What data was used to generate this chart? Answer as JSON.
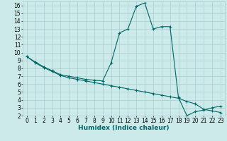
{
  "xlabel": "Humidex (Indice chaleur)",
  "ylabel": "",
  "background_color": "#cceaea",
  "grid_color": "#aacccc",
  "line_color": "#006666",
  "xlim": [
    -0.5,
    23.5
  ],
  "ylim": [
    2,
    16.5
  ],
  "xticks": [
    0,
    1,
    2,
    3,
    4,
    5,
    6,
    7,
    8,
    9,
    10,
    11,
    12,
    13,
    14,
    15,
    16,
    17,
    18,
    19,
    20,
    21,
    22,
    23
  ],
  "yticks": [
    2,
    3,
    4,
    5,
    6,
    7,
    8,
    9,
    10,
    11,
    12,
    13,
    14,
    15,
    16
  ],
  "series1_x": [
    0,
    1,
    2,
    3,
    4,
    5,
    6,
    7,
    8,
    9,
    10,
    11,
    12,
    13,
    14,
    15,
    16,
    17,
    18,
    19,
    20,
    21,
    22,
    23
  ],
  "series1_y": [
    9.5,
    8.8,
    8.2,
    7.7,
    7.2,
    7.0,
    6.8,
    6.6,
    6.5,
    6.4,
    8.7,
    12.5,
    13.0,
    15.9,
    16.3,
    13.0,
    13.3,
    13.3,
    4.3,
    2.0,
    2.5,
    2.7,
    3.0,
    3.2
  ],
  "series2_x": [
    0,
    1,
    2,
    3,
    4,
    5,
    6,
    7,
    8,
    9,
    10,
    11,
    12,
    13,
    14,
    15,
    16,
    17,
    18,
    19,
    20,
    21,
    22,
    23
  ],
  "series2_y": [
    9.5,
    8.7,
    8.1,
    7.6,
    7.1,
    6.8,
    6.6,
    6.4,
    6.2,
    6.0,
    5.8,
    5.6,
    5.4,
    5.2,
    5.0,
    4.8,
    4.6,
    4.4,
    4.2,
    3.8,
    3.5,
    2.8,
    2.6,
    2.4
  ],
  "marker": "+",
  "markersize": 3,
  "linewidth": 0.8,
  "tick_fontsize": 5.5,
  "xlabel_fontsize": 6.5
}
